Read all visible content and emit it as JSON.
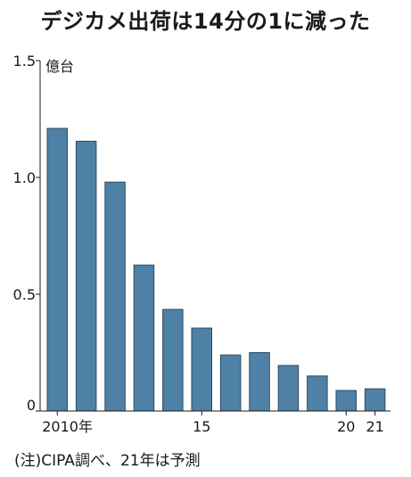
{
  "chart_data": {
    "type": "bar",
    "title": "デジカメ出荷は14分の1に減った",
    "unit": "億台",
    "ylim": [
      0,
      1.5
    ],
    "y_ticks": [
      {
        "value": 0,
        "label": "0"
      },
      {
        "value": 0.5,
        "label": "0.5"
      },
      {
        "value": 1.0,
        "label": "1.0"
      },
      {
        "value": 1.5,
        "label": "1.5"
      }
    ],
    "categories": [
      "2010",
      "2011",
      "2012",
      "2013",
      "2014",
      "2015",
      "2016",
      "2017",
      "2018",
      "2019",
      "2020",
      "2021"
    ],
    "values": [
      1.21,
      1.155,
      0.98,
      0.625,
      0.435,
      0.355,
      0.24,
      0.25,
      0.195,
      0.15,
      0.088,
      0.095
    ],
    "x_tick_labels": [
      {
        "index": 0,
        "label": "2010年"
      },
      {
        "index": 5,
        "label": "15"
      },
      {
        "index": 10,
        "label": "20"
      },
      {
        "index": 11,
        "label": "21"
      }
    ],
    "bar_color": "#4f81a6",
    "bar_stroke": "#2b4b63",
    "grid": false,
    "note": "(注)CIPA調べ、21年は予測"
  }
}
